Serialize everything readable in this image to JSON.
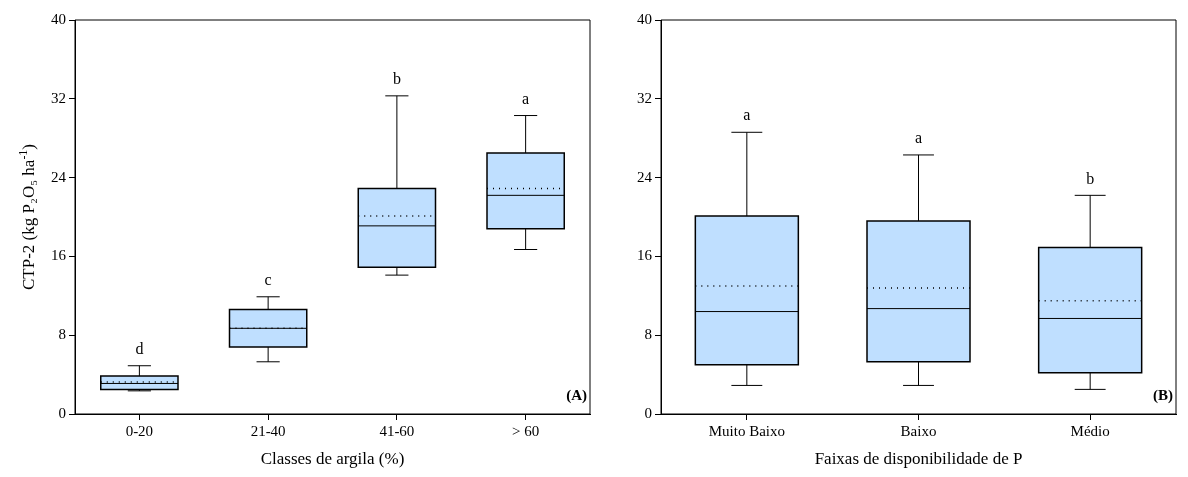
{
  "chart_data": [
    {
      "type": "box",
      "xlabel": "Classes de argila (%)",
      "ylabel": "CTP-2 (kg P₂O₅ ha$^{-1}$)",
      "categories": [
        "0-20",
        "21-40",
        "41-60",
        "> 60"
      ],
      "color": "#bfdfff",
      "boxes": [
        {
          "low": 2.35,
          "q1": 2.5,
          "median": 3.1,
          "q3": 3.85,
          "high": 4.9,
          "mean": 3.25
        },
        {
          "low": 5.3,
          "q1": 6.8,
          "median": 8.7,
          "q3": 10.6,
          "high": 11.9,
          "mean": 8.7
        },
        {
          "low": 14.1,
          "q1": 14.9,
          "median": 19.1,
          "q3": 22.9,
          "high": 32.3,
          "mean": 20.1
        },
        {
          "low": 16.7,
          "q1": 18.8,
          "median": 22.2,
          "q3": 26.5,
          "high": 30.3,
          "mean": 22.9
        }
      ],
      "ylim": [
        0,
        40
      ],
      "yticks": [
        0,
        8,
        16,
        24,
        32,
        40
      ],
      "grid": false,
      "annotations": [
        "d",
        "c",
        "b",
        "a",
        "(A)"
      ]
    },
    {
      "type": "box",
      "xlabel": "Faixas de disponibilidade de P",
      "categories": [
        "Muito Baixo",
        "Baixo",
        "Médio"
      ],
      "color": "#bfdfff",
      "boxes": [
        {
          "low": 2.9,
          "q1": 5.0,
          "median": 10.4,
          "q3": 20.1,
          "high": 28.6,
          "mean": 13.0
        },
        {
          "low": 2.9,
          "q1": 5.3,
          "median": 10.7,
          "q3": 19.6,
          "high": 26.3,
          "mean": 12.8
        },
        {
          "low": 2.5,
          "q1": 4.2,
          "median": 9.7,
          "q3": 16.9,
          "high": 22.2,
          "mean": 11.5
        }
      ],
      "ylim": [
        0,
        40
      ],
      "yticks": [
        0,
        8,
        16,
        24,
        32,
        40
      ],
      "grid": false,
      "annotations": [
        "a",
        "a",
        "b",
        "(B)"
      ]
    }
  ]
}
